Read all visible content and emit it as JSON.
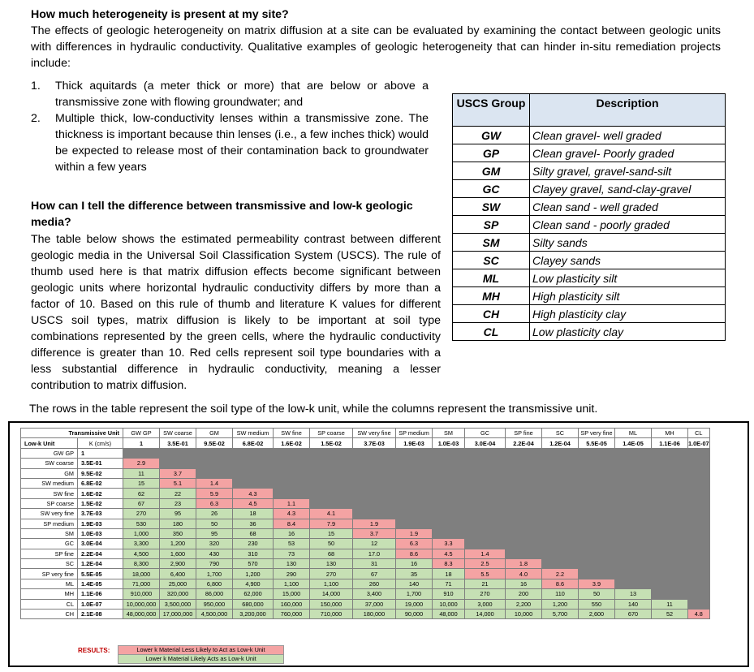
{
  "intro": {
    "heading": "How much heterogeneity is present at my site?",
    "paragraph": "The effects of geologic heterogeneity on matrix diffusion at a site can be evaluated by examining the contact between geologic units with differences in hydraulic conductivity. Qualitative examples of geologic heterogeneity that can hinder in-situ remediation projects include:",
    "list": [
      {
        "num": "1.",
        "text": "Thick aquitards (a meter thick or more) that are below or above a transmissive zone with flowing groundwater; and"
      },
      {
        "num": "2.",
        "text": "Multiple thick, low-conductivity lenses within a transmissive zone. The thickness is important because thin lenses (i.e., a few inches thick) would be expected to release most of their contamination back to groundwater within a few years"
      }
    ]
  },
  "section2": {
    "heading": "How can I tell the difference between transmissive and low-k geologic media?",
    "paragraph": "The table below shows the estimated permeability contrast between different geologic media in the Universal Soil Classification System (USCS). The rule of thumb used here is that matrix diffusion effects become significant between geologic units where horizontal hydraulic conductivity differs by more than a factor of 10. Based on this rule of thumb and literature K values for different USCS soil types, matrix diffusion is likely to be important at soil type combinations represented by the green cells, where the hydraulic conductivity difference is greater than 10. Red cells represent soil type boundaries with a less substantial difference in hydraulic conductivity, meaning a lesser contribution to matrix diffusion.",
    "rows_note": "The rows in the table represent the soil type of the low-k unit, while the columns represent the transmissive unit."
  },
  "uscs_table": {
    "header_group": "USCS Group",
    "header_desc": "Description",
    "rows": [
      {
        "group": "GW",
        "desc": "Clean gravel- well graded"
      },
      {
        "group": "GP",
        "desc": "Clean gravel- Poorly graded"
      },
      {
        "group": "GM",
        "desc": "Silty gravel, gravel-sand-silt"
      },
      {
        "group": "GC",
        "desc": "Clayey gravel, sand-clay-gravel"
      },
      {
        "group": "SW",
        "desc": "Clean sand - well graded"
      },
      {
        "group": "SP",
        "desc": "Clean sand - poorly graded"
      },
      {
        "group": "SM",
        "desc": "Silty sands"
      },
      {
        "group": "SC",
        "desc": "Clayey sands"
      },
      {
        "group": "ML",
        "desc": "Low plasticity silt"
      },
      {
        "group": "MH",
        "desc": "High plasticity silt"
      },
      {
        "group": "CH",
        "desc": "High plasticity clay"
      },
      {
        "group": "CL",
        "desc": "Low plasticity clay"
      }
    ]
  },
  "matrix": {
    "corner_top": "Transmissive Unit",
    "corner_row": "Low-k Unit",
    "k_header": "K (cm/s)",
    "columns": [
      "GW GP",
      "SW coarse",
      "GM",
      "SW medium",
      "SW fine",
      "SP coarse",
      "SW very fine",
      "SP medium",
      "SM",
      "GC",
      "SP fine",
      "SC",
      "SP very fine",
      "ML",
      "MH",
      "CL"
    ],
    "column_k": [
      "1",
      "3.5E-01",
      "9.5E-02",
      "6.8E-02",
      "1.6E-02",
      "1.5E-02",
      "3.7E-03",
      "1.9E-03",
      "1.0E-03",
      "3.0E-04",
      "2.2E-04",
      "1.2E-04",
      "5.5E-05",
      "1.4E-05",
      "1.1E-06",
      "1.0E-07"
    ],
    "rows": [
      {
        "label": "GW GP",
        "k": "1",
        "cells": []
      },
      {
        "label": "SW coarse",
        "k": "3.5E-01",
        "cells": [
          "2.9"
        ]
      },
      {
        "label": "GM",
        "k": "9.5E-02",
        "cells": [
          "11",
          "3.7"
        ]
      },
      {
        "label": "SW medium",
        "k": "6.8E-02",
        "cells": [
          "15",
          "5.1",
          "1.4"
        ]
      },
      {
        "label": "SW fine",
        "k": "1.6E-02",
        "cells": [
          "62",
          "22",
          "5.9",
          "4.3"
        ]
      },
      {
        "label": "SP coarse",
        "k": "1.5E-02",
        "cells": [
          "67",
          "23",
          "6.3",
          "4.5",
          "1.1"
        ]
      },
      {
        "label": "SW very fine",
        "k": "3.7E-03",
        "cells": [
          "270",
          "95",
          "26",
          "18",
          "4.3",
          "4.1"
        ]
      },
      {
        "label": "SP medium",
        "k": "1.9E-03",
        "cells": [
          "530",
          "180",
          "50",
          "36",
          "8.4",
          "7.9",
          "1.9"
        ]
      },
      {
        "label": "SM",
        "k": "1.0E-03",
        "cells": [
          "1,000",
          "350",
          "95",
          "68",
          "16",
          "15",
          "3.7",
          "1.9"
        ]
      },
      {
        "label": "GC",
        "k": "3.0E-04",
        "cells": [
          "3,300",
          "1,200",
          "320",
          "230",
          "53",
          "50",
          "12",
          "6.3",
          "3.3"
        ]
      },
      {
        "label": "SP fine",
        "k": "2.2E-04",
        "cells": [
          "4,500",
          "1,600",
          "430",
          "310",
          "73",
          "68",
          "17.0",
          "8.6",
          "4.5",
          "1.4"
        ]
      },
      {
        "label": "SC",
        "k": "1.2E-04",
        "cells": [
          "8,300",
          "2,900",
          "790",
          "570",
          "130",
          "130",
          "31",
          "16",
          "8.3",
          "2.5",
          "1.8"
        ]
      },
      {
        "label": "SP very fine",
        "k": "5.5E-05",
        "cells": [
          "18,000",
          "6,400",
          "1,700",
          "1,200",
          "290",
          "270",
          "67",
          "35",
          "18",
          "5.5",
          "4.0",
          "2.2"
        ]
      },
      {
        "label": "ML",
        "k": "1.4E-05",
        "cells": [
          "71,000",
          "25,000",
          "6,800",
          "4,900",
          "1,100",
          "1,100",
          "260",
          "140",
          "71",
          "21",
          "16",
          "8.6",
          "3.9"
        ]
      },
      {
        "label": "MH",
        "k": "1.1E-06",
        "cells": [
          "910,000",
          "320,000",
          "86,000",
          "62,000",
          "15,000",
          "14,000",
          "3,400",
          "1,700",
          "910",
          "270",
          "200",
          "110",
          "50",
          "13"
        ]
      },
      {
        "label": "CL",
        "k": "1.0E-07",
        "cells": [
          "10,000,000",
          "3,500,000",
          "950,000",
          "680,000",
          "160,000",
          "150,000",
          "37,000",
          "19,000",
          "10,000",
          "3,000",
          "2,200",
          "1,200",
          "550",
          "140",
          "11"
        ]
      },
      {
        "label": "CH",
        "k": "2.1E-08",
        "cells": [
          "48,000,000",
          "17,000,000",
          "4,500,000",
          "3,200,000",
          "760,000",
          "710,000",
          "180,000",
          "90,000",
          "48,000",
          "14,000",
          "10,000",
          "5,700",
          "2,600",
          "670",
          "52",
          "4.8"
        ]
      }
    ],
    "colors": {
      "green": "#c6e0b4",
      "red": "#f4a3a3",
      "gray": "#7f7f7f"
    }
  },
  "results": {
    "label": "RESULTS:",
    "red_legend": "Lower k Material Less Likely to Act as Low-k Unit",
    "green_legend": "Lower k Material Likely Acts as Low-k Unit"
  }
}
